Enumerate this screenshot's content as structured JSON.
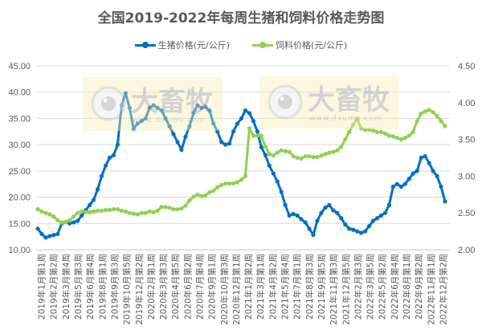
{
  "title": "全国2019-2022年每周生猪和饲料价格走势图",
  "legend": [
    {
      "label": "生猪价格(元/公斤)",
      "color": "#0070C0"
    },
    {
      "label": "饲料价格(元/公斤)",
      "color": "#92D050"
    }
  ],
  "watermark": {
    "brand": "大畜牧",
    "url": "www.dxumu.com"
  },
  "chart_data": {
    "type": "line",
    "title": "全国2019-2022年每周生猪和饲料价格走势图",
    "xlabel": "",
    "ylabel_left": "",
    "ylabel_right": "",
    "grid": true,
    "legend_position": "top",
    "y_left": {
      "min": 10,
      "max": 45,
      "ticks": [
        "10.00",
        "15.00",
        "20.00",
        "25.00",
        "30.00",
        "35.00",
        "40.00",
        "45.00"
      ]
    },
    "y_right": {
      "min": 2,
      "max": 4.5,
      "ticks": [
        "2.00",
        "2.50",
        "3.00",
        "3.50",
        "4.00",
        "4.50"
      ]
    },
    "x_tick_labels": [
      "2019年1月第1周",
      "2019年2月第2周",
      "2019年3月第4周",
      "2019年5月第3周",
      "2019年6月第4周",
      "2019年8月第1周",
      "2019年9月第3周",
      "2019年10月第5周",
      "2019年12月第2周",
      "2020年2月第1周",
      "2020年3月第3周",
      "2020年4月第5周",
      "2020年6月第2周",
      "2020年7月第4周",
      "2020年9月第1周",
      "2020年10月第3周",
      "2020年12月第1周",
      "2021年1月第2周",
      "2021年3月第1周",
      "2021年4月第2周",
      "2021年5月第4周",
      "2021年7月第1周",
      "2021年8月第3周",
      "2021年9月第5周",
      "2021年11月第3周",
      "2021年12月第5周",
      "2022年2月第3周",
      "2022年3月第5周",
      "2022年5月第2周",
      "2022年6月第4周",
      "2022年8月第1周",
      "2022年9月第2周",
      "2022年11月第1周",
      "2022年12月第2周"
    ],
    "series": [
      {
        "name": "生猪价格(元/公斤)",
        "axis": "left",
        "color": "#0070C0",
        "values": [
          14.0,
          13.0,
          12.3,
          12.6,
          12.8,
          13.0,
          15.0,
          15.3,
          15.0,
          15.2,
          15.5,
          16.5,
          17.5,
          18.5,
          19.5,
          21.5,
          24.0,
          26.0,
          27.5,
          28.0,
          30.0,
          37.5,
          39.8,
          37.0,
          33.0,
          34.0,
          34.5,
          35.0,
          37.0,
          37.5,
          37.0,
          36.5,
          35.0,
          33.5,
          32.0,
          30.5,
          29.0,
          31.5,
          33.5,
          36.0,
          37.5,
          37.0,
          37.2,
          36.5,
          34.0,
          32.5,
          30.5,
          30.0,
          30.2,
          32.5,
          34.0,
          35.0,
          36.5,
          36.0,
          34.5,
          32.5,
          29.5,
          28.0,
          26.0,
          24.5,
          23.0,
          21.0,
          18.5,
          16.5,
          16.8,
          16.5,
          15.8,
          15.2,
          14.0,
          12.8,
          15.5,
          17.0,
          18.0,
          18.5,
          17.5,
          17.0,
          16.0,
          14.8,
          14.0,
          13.8,
          13.5,
          13.2,
          13.5,
          14.5,
          15.5,
          16.0,
          16.5,
          17.0,
          18.5,
          22.0,
          22.5,
          22.0,
          22.5,
          23.5,
          24.5,
          25.0,
          27.5,
          27.8,
          26.5,
          25.0,
          24.0,
          22.0,
          19.2
        ]
      },
      {
        "name": "饲料价格(元/公斤)",
        "axis": "right",
        "color": "#92D050",
        "values": [
          2.55,
          2.52,
          2.5,
          2.48,
          2.45,
          2.4,
          2.37,
          2.38,
          2.4,
          2.45,
          2.5,
          2.52,
          2.51,
          2.51,
          2.52,
          2.53,
          2.53,
          2.54,
          2.54,
          2.55,
          2.55,
          2.53,
          2.52,
          2.5,
          2.49,
          2.48,
          2.5,
          2.5,
          2.52,
          2.51,
          2.53,
          2.58,
          2.58,
          2.57,
          2.55,
          2.55,
          2.56,
          2.6,
          2.67,
          2.72,
          2.75,
          2.73,
          2.74,
          2.78,
          2.8,
          2.85,
          2.88,
          2.9,
          2.9,
          2.9,
          2.92,
          2.95,
          3.0,
          3.65,
          3.55,
          3.55,
          3.55,
          3.4,
          3.3,
          3.28,
          3.32,
          3.35,
          3.34,
          3.33,
          3.27,
          3.25,
          3.24,
          3.27,
          3.27,
          3.26,
          3.26,
          3.28,
          3.3,
          3.32,
          3.33,
          3.35,
          3.4,
          3.5,
          3.6,
          3.7,
          3.78,
          3.65,
          3.63,
          3.63,
          3.62,
          3.6,
          3.6,
          3.58,
          3.55,
          3.54,
          3.52,
          3.5,
          3.52,
          3.55,
          3.6,
          3.75,
          3.85,
          3.88,
          3.9,
          3.87,
          3.82,
          3.75,
          3.68
        ]
      }
    ]
  }
}
